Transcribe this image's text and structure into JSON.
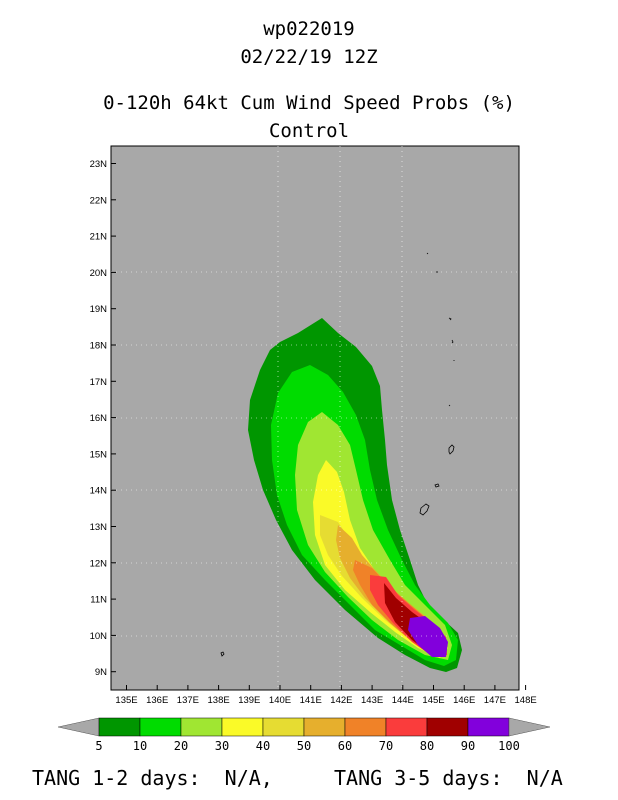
{
  "header": {
    "storm_id": "wp022019",
    "datetime": "02/22/19 12Z",
    "product": "0-120h 64kt Cum Wind Speed Probs (%)",
    "member": "Control"
  },
  "map": {
    "background_color": "#a8a8a8",
    "lon_labels": [
      "135E",
      "136E",
      "137E",
      "138E",
      "139E",
      "140E",
      "141E",
      "142E",
      "143E",
      "144E",
      "145E",
      "146E",
      "147E",
      "148E"
    ],
    "lat_labels": [
      "9N",
      "10N",
      "11N",
      "12N",
      "13N",
      "14N",
      "15N",
      "16N",
      "17N",
      "18N",
      "19N",
      "20N",
      "21N",
      "22N",
      "23N"
    ]
  },
  "legend": {
    "values": [
      "5",
      "10",
      "20",
      "30",
      "40",
      "50",
      "60",
      "70",
      "80",
      "90",
      "100"
    ],
    "colors": [
      "#009600",
      "#00dc00",
      "#a0e632",
      "#fafa28",
      "#e6dc32",
      "#e6af2d",
      "#f08228",
      "#fa3c3c",
      "#a00000",
      "#8200dc"
    ],
    "end_color": "#a8a8a8"
  },
  "footer": {
    "tang_short_label": "TANG 1-2 days:",
    "tang_short_value": "N/A,",
    "tang_long_label": "TANG 3-5 days:",
    "tang_long_value": "N/A"
  }
}
